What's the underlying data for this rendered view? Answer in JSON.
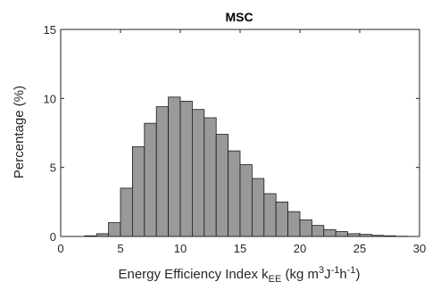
{
  "chart_data": {
    "type": "bar",
    "title": "MSC",
    "xlabel": {
      "main": "Energy Efficiency Index k",
      "subscript": "EE",
      "units_open": " (kg m",
      "units_exp1": "3",
      "units_mid": "J",
      "units_exp2": "-1",
      "units_h": "h",
      "units_exp3": "-1",
      "units_close": ")"
    },
    "ylabel": "Percentage (%)",
    "xlim": [
      0,
      30
    ],
    "ylim": [
      0,
      15
    ],
    "xticks": [
      "0",
      "5",
      "10",
      "15",
      "20",
      "25",
      "30"
    ],
    "yticks": [
      "0",
      "5",
      "10",
      "15"
    ],
    "bin_width": 1,
    "bins": [
      {
        "x": 2,
        "value": 0.05
      },
      {
        "x": 3,
        "value": 0.2
      },
      {
        "x": 4,
        "value": 1.0
      },
      {
        "x": 5,
        "value": 3.5
      },
      {
        "x": 6,
        "value": 6.5
      },
      {
        "x": 7,
        "value": 8.2
      },
      {
        "x": 8,
        "value": 9.4
      },
      {
        "x": 9,
        "value": 10.1
      },
      {
        "x": 10,
        "value": 9.8
      },
      {
        "x": 11,
        "value": 9.2
      },
      {
        "x": 12,
        "value": 8.6
      },
      {
        "x": 13,
        "value": 7.4
      },
      {
        "x": 14,
        "value": 6.2
      },
      {
        "x": 15,
        "value": 5.2
      },
      {
        "x": 16,
        "value": 4.2
      },
      {
        "x": 17,
        "value": 3.1
      },
      {
        "x": 18,
        "value": 2.5
      },
      {
        "x": 19,
        "value": 1.8
      },
      {
        "x": 20,
        "value": 1.2
      },
      {
        "x": 21,
        "value": 0.8
      },
      {
        "x": 22,
        "value": 0.5
      },
      {
        "x": 23,
        "value": 0.35
      },
      {
        "x": 24,
        "value": 0.2
      },
      {
        "x": 25,
        "value": 0.15
      },
      {
        "x": 26,
        "value": 0.08
      },
      {
        "x": 27,
        "value": 0.05
      },
      {
        "x": 28,
        "value": 0.02
      }
    ],
    "grid": false,
    "bar_color": "#999999",
    "bar_edge_color": "#1a1a1a"
  }
}
